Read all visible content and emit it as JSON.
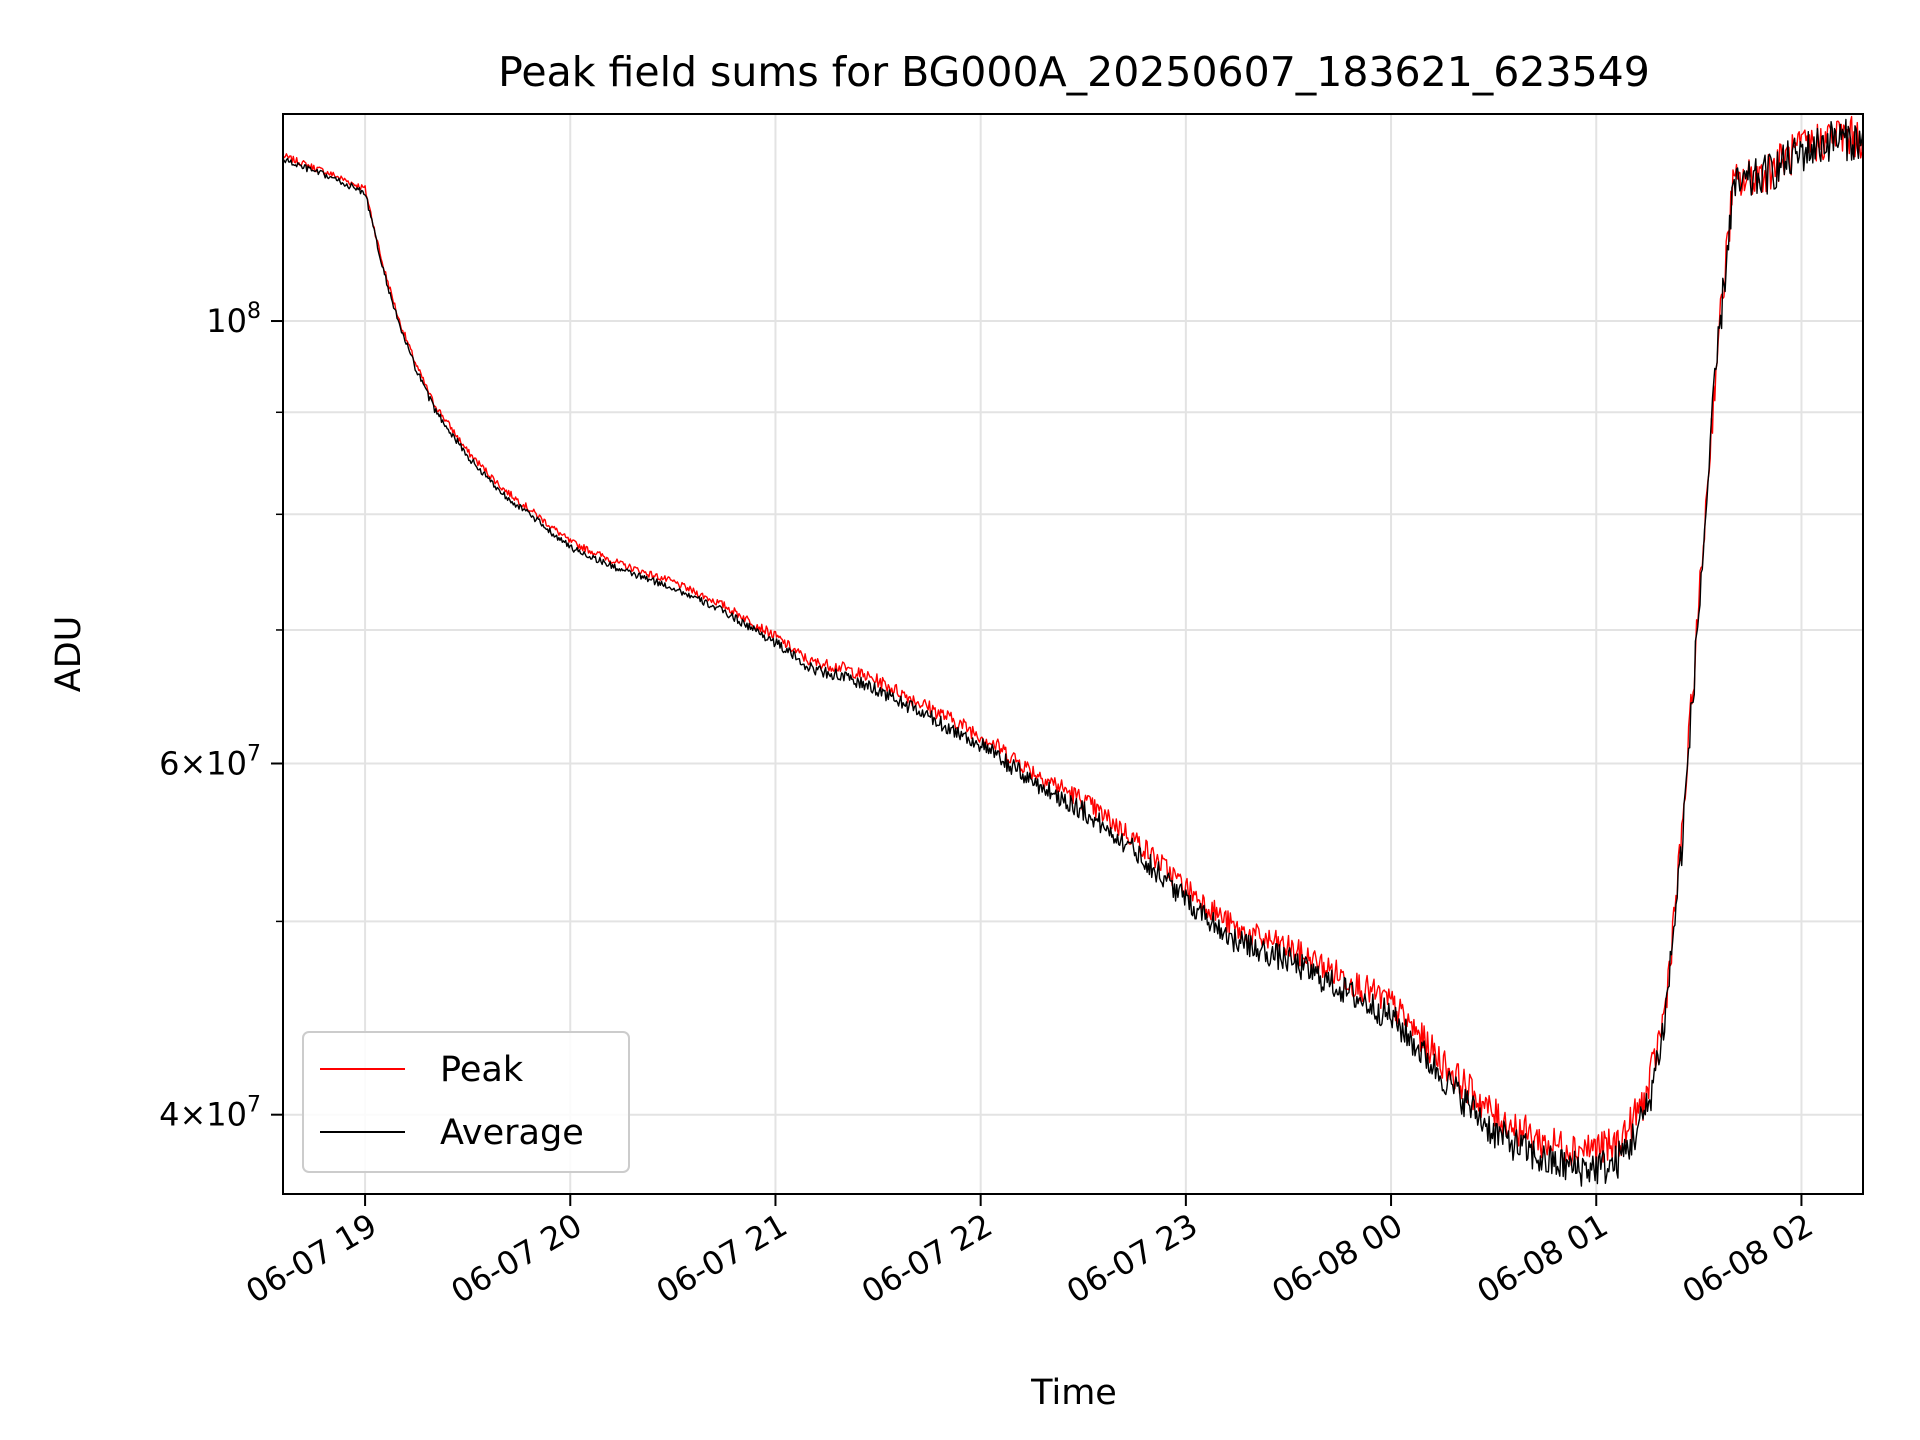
{
  "chart_data": {
    "type": "line",
    "title": "Peak field sums for BG000A_20250607_183621_623549",
    "xlabel": "Time",
    "ylabel": "ADU",
    "yscale": "log",
    "xlim": [
      "2025-06-07 18:36",
      "2025-06-08 02:18"
    ],
    "ylim": [
      36500000,
      127000000
    ],
    "grid": true,
    "legend": "lower-left",
    "x_ticks": [
      "06-07 19",
      "06-07 20",
      "06-07 21",
      "06-07 22",
      "06-07 23",
      "06-08 00",
      "06-08 01",
      "06-08 02"
    ],
    "y_ticks_major": [
      {
        "value": 40000000,
        "label": "4×10^7"
      },
      {
        "value": 60000000,
        "label": "6×10^7"
      },
      {
        "value": 100000000,
        "label": "10^8"
      }
    ],
    "y_ticks_minor": [
      50000000,
      70000000,
      80000000,
      90000000
    ],
    "x": [
      "2025-06-07 18:36",
      "2025-06-07 18:50",
      "2025-06-07 19:00",
      "2025-06-07 19:05",
      "2025-06-07 19:10",
      "2025-06-07 19:15",
      "2025-06-07 19:20",
      "2025-06-07 19:30",
      "2025-06-07 19:40",
      "2025-06-07 19:50",
      "2025-06-07 20:00",
      "2025-06-07 20:15",
      "2025-06-07 20:30",
      "2025-06-07 20:45",
      "2025-06-07 21:00",
      "2025-06-07 21:10",
      "2025-06-07 21:20",
      "2025-06-07 21:30",
      "2025-06-07 21:45",
      "2025-06-07 22:00",
      "2025-06-07 22:15",
      "2025-06-07 22:30",
      "2025-06-07 22:45",
      "2025-06-07 23:00",
      "2025-06-07 23:15",
      "2025-06-07 23:30",
      "2025-06-07 23:45",
      "2025-06-08 00:00",
      "2025-06-08 00:15",
      "2025-06-08 00:30",
      "2025-06-08 00:45",
      "2025-06-08 00:55",
      "2025-06-08 01:05",
      "2025-06-08 01:10",
      "2025-06-08 01:15",
      "2025-06-08 01:20",
      "2025-06-08 01:25",
      "2025-06-08 01:30",
      "2025-06-08 01:35",
      "2025-06-08 01:40",
      "2025-06-08 01:50",
      "2025-06-08 02:00",
      "2025-06-08 02:10",
      "2025-06-08 02:18"
    ],
    "series": [
      {
        "name": "Peak",
        "color": "#ff0000",
        "values": [
          121000000,
          118500000,
          116500000,
          107000000,
          100000000,
          95000000,
          91000000,
          86000000,
          82500000,
          80000000,
          77500000,
          75500000,
          74000000,
          72000000,
          69500000,
          67500000,
          67000000,
          66000000,
          64000000,
          62000000,
          59500000,
          57500000,
          55000000,
          52000000,
          49500000,
          48500000,
          47000000,
          45500000,
          42500000,
          40000000,
          38700000,
          38500000,
          38500000,
          39500000,
          41000000,
          45000000,
          55000000,
          72000000,
          95000000,
          117000000,
          119000000,
          122000000,
          124000000,
          123500000
        ]
      },
      {
        "name": "Average",
        "color": "#000000",
        "values": [
          120500000,
          118000000,
          116000000,
          106500000,
          99500000,
          94500000,
          90500000,
          85500000,
          82000000,
          79500000,
          77000000,
          75000000,
          73500000,
          71500000,
          69000000,
          67000000,
          66300000,
          65300000,
          63300000,
          61300000,
          58800000,
          56800000,
          54300000,
          51300000,
          48800000,
          47800000,
          46300000,
          44800000,
          41800000,
          39200000,
          37900000,
          37600000,
          37700000,
          38700000,
          40300000,
          44500000,
          54500000,
          71500000,
          94500000,
          116500000,
          118500000,
          121500000,
          123500000,
          123000000
        ]
      }
    ]
  }
}
